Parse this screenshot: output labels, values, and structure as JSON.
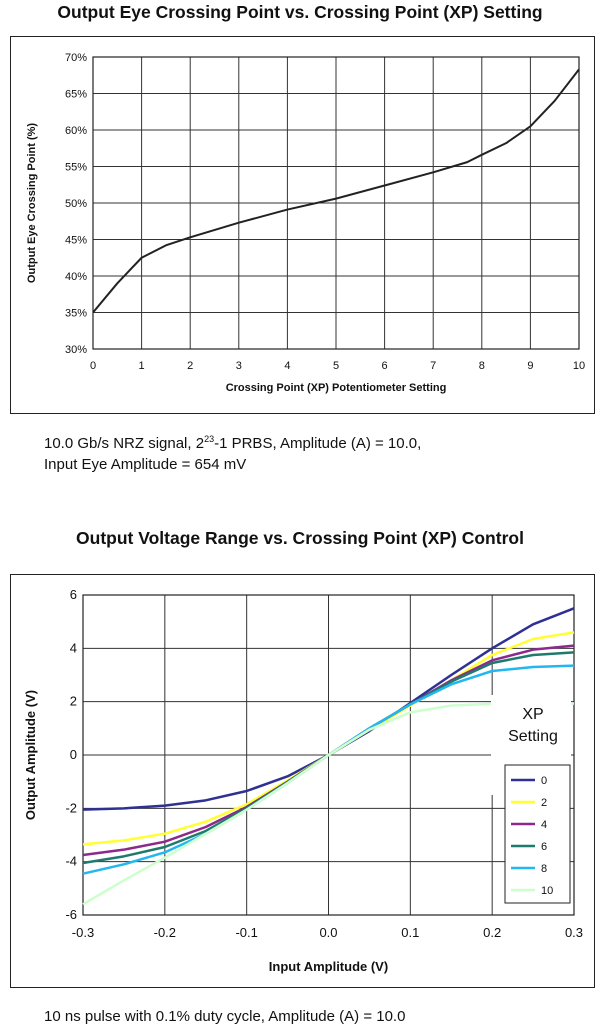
{
  "chart_data": [
    {
      "type": "line",
      "title": "Output Eye Crossing Point vs. Crossing Point (XP) Setting",
      "xlabel": "Crossing Point (XP) Potentiometer Setting",
      "ylabel": "Output Eye Crossing Point (%)",
      "xlim": [
        0,
        10
      ],
      "ylim": [
        30,
        70
      ],
      "x_ticks": [
        "0",
        "1",
        "2",
        "3",
        "4",
        "5",
        "6",
        "7",
        "8",
        "9",
        "10"
      ],
      "y_ticks": [
        "30%",
        "35%",
        "40%",
        "45%",
        "50%",
        "55%",
        "60%",
        "65%",
        "70%"
      ],
      "grid": true,
      "series": [
        {
          "x": [
            0,
            0.5,
            1,
            1.5,
            2,
            3,
            4,
            5,
            6,
            7,
            7.7,
            8,
            8.5,
            9,
            9.5,
            10
          ],
          "y": [
            35,
            39,
            42.5,
            44.2,
            45.3,
            47.3,
            49.1,
            50.6,
            52.4,
            54.2,
            55.6,
            56.6,
            58.2,
            60.5,
            64,
            68.3
          ],
          "color": "#222222"
        }
      ],
      "caption_main": "10.0 Gb/s NRZ signal, 2",
      "caption_sup": "23",
      "caption_rest": "-1 PRBS, Amplitude (A) = 10.0,",
      "caption_line2": "Input Eye Amplitude = 654 mV"
    },
    {
      "type": "line",
      "title": "Output Voltage Range vs. Crossing Point (XP) Control",
      "xlabel": "Input Amplitude (V)",
      "ylabel": "Output Amplitude (V)",
      "xlim": [
        -0.3,
        0.3
      ],
      "ylim": [
        -6,
        6
      ],
      "x_ticks": [
        "-0.3",
        "-0.2",
        "-0.1",
        "0.0",
        "0.1",
        "0.2",
        "0.3"
      ],
      "y_ticks": [
        "-6",
        "-4",
        "-2",
        "0",
        "2",
        "4",
        "6"
      ],
      "grid": true,
      "legend_title_1": "XP",
      "legend_title_2": "Setting",
      "legend_position": "right",
      "series": [
        {
          "name": "0",
          "color": "#2e3192",
          "x": [
            -0.3,
            -0.25,
            -0.2,
            -0.15,
            -0.1,
            -0.05,
            0,
            0.05,
            0.1,
            0.15,
            0.2,
            0.25,
            0.3
          ],
          "y": [
            -2.05,
            -2.0,
            -1.9,
            -1.7,
            -1.35,
            -0.8,
            0,
            0.9,
            1.95,
            3.0,
            4.0,
            4.9,
            5.5
          ]
        },
        {
          "name": "2",
          "color": "#ffff33",
          "x": [
            -0.3,
            -0.25,
            -0.2,
            -0.15,
            -0.1,
            -0.05,
            0,
            0.05,
            0.1,
            0.15,
            0.2,
            0.25,
            0.3
          ],
          "y": [
            -3.35,
            -3.2,
            -2.95,
            -2.5,
            -1.85,
            -0.95,
            0,
            0.95,
            1.85,
            2.8,
            3.75,
            4.35,
            4.6
          ]
        },
        {
          "name": "4",
          "color": "#8b2a8b",
          "x": [
            -0.3,
            -0.25,
            -0.2,
            -0.15,
            -0.1,
            -0.05,
            0,
            0.05,
            0.1,
            0.15,
            0.2,
            0.25,
            0.3
          ],
          "y": [
            -3.75,
            -3.55,
            -3.25,
            -2.7,
            -1.95,
            -1.0,
            0,
            1.0,
            1.9,
            2.8,
            3.55,
            3.95,
            4.1
          ]
        },
        {
          "name": "6",
          "color": "#1f7a6e",
          "x": [
            -0.3,
            -0.25,
            -0.2,
            -0.15,
            -0.1,
            -0.05,
            0,
            0.05,
            0.1,
            0.15,
            0.2,
            0.25,
            0.3
          ],
          "y": [
            -4.05,
            -3.8,
            -3.45,
            -2.85,
            -2.0,
            -1.02,
            0,
            1.0,
            1.9,
            2.75,
            3.45,
            3.75,
            3.85
          ]
        },
        {
          "name": "8",
          "color": "#22b8ef",
          "x": [
            -0.3,
            -0.25,
            -0.2,
            -0.15,
            -0.1,
            -0.05,
            0,
            0.05,
            0.1,
            0.15,
            0.2,
            0.25,
            0.3
          ],
          "y": [
            -4.45,
            -4.1,
            -3.65,
            -2.95,
            -2.05,
            -1.05,
            0,
            1.0,
            1.9,
            2.65,
            3.15,
            3.3,
            3.35
          ]
        },
        {
          "name": "10",
          "color": "#ccffcc",
          "x": [
            -0.3,
            -0.25,
            -0.2,
            -0.15,
            -0.1,
            -0.05,
            0,
            0.05,
            0.1,
            0.15,
            0.2,
            0.25,
            0.3
          ],
          "y": [
            -5.6,
            -4.7,
            -3.85,
            -2.95,
            -2.05,
            -1.05,
            0,
            0.95,
            1.6,
            1.85,
            1.92,
            1.93,
            1.93
          ]
        }
      ],
      "caption_line1": "10 ns pulse with 0.1% duty cycle, Amplitude (A) = 10.0"
    }
  ]
}
